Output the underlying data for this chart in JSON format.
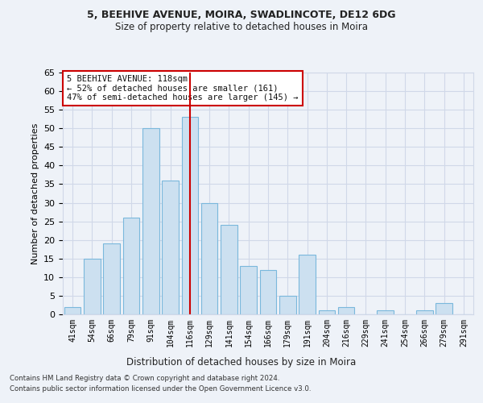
{
  "title1": "5, BEEHIVE AVENUE, MOIRA, SWADLINCOTE, DE12 6DG",
  "title2": "Size of property relative to detached houses in Moira",
  "xlabel": "Distribution of detached houses by size in Moira",
  "ylabel": "Number of detached properties",
  "footer1": "Contains HM Land Registry data © Crown copyright and database right 2024.",
  "footer2": "Contains public sector information licensed under the Open Government Licence v3.0.",
  "categories": [
    "41sqm",
    "54sqm",
    "66sqm",
    "79sqm",
    "91sqm",
    "104sqm",
    "116sqm",
    "129sqm",
    "141sqm",
    "154sqm",
    "166sqm",
    "179sqm",
    "191sqm",
    "204sqm",
    "216sqm",
    "229sqm",
    "241sqm",
    "254sqm",
    "266sqm",
    "279sqm",
    "291sqm"
  ],
  "values": [
    2,
    15,
    19,
    26,
    50,
    36,
    53,
    30,
    24,
    13,
    12,
    5,
    16,
    1,
    2,
    0,
    1,
    0,
    1,
    3,
    0
  ],
  "highlight_index": 6,
  "bar_color": "#cce0f0",
  "bar_edge_color": "#7ab8dc",
  "highlight_line_color": "#cc0000",
  "ylim": [
    0,
    65
  ],
  "yticks": [
    0,
    5,
    10,
    15,
    20,
    25,
    30,
    35,
    40,
    45,
    50,
    55,
    60,
    65
  ],
  "annotation_title": "5 BEEHIVE AVENUE: 118sqm",
  "annotation_line1": "← 52% of detached houses are smaller (161)",
  "annotation_line2": "47% of semi-detached houses are larger (145) →",
  "annotation_box_color": "#ffffff",
  "annotation_box_edge_color": "#cc0000",
  "grid_color": "#d0d8e8",
  "background_color": "#eef2f8"
}
